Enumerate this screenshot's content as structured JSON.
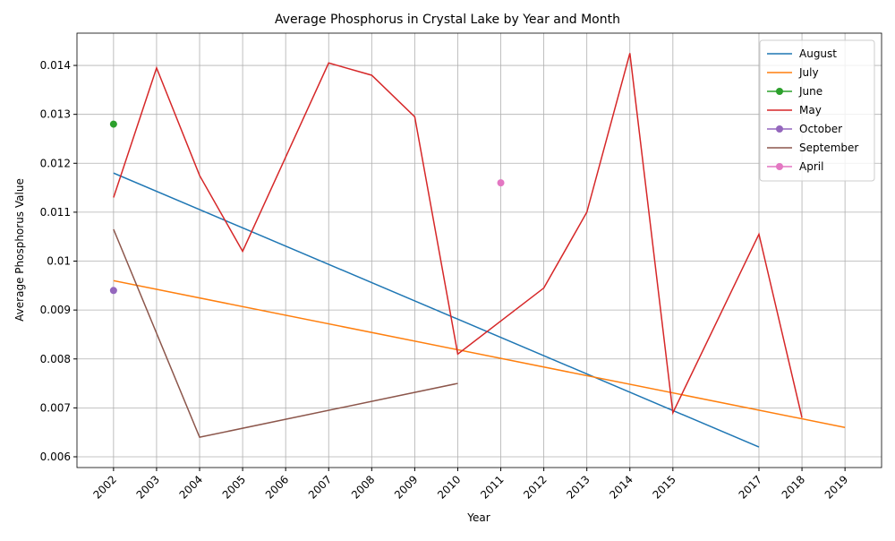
{
  "chart_data": {
    "type": "line",
    "title": "Average Phosphorus in Crystal Lake by Year and Month",
    "x_label": "Year",
    "y_label": "Average Phosphorus Value",
    "xlim": [
      2001.15,
      2019.85
    ],
    "ylim": [
      0.00578,
      0.01466
    ],
    "xticks": [
      2002,
      2003,
      2004,
      2005,
      2006,
      2007,
      2008,
      2009,
      2010,
      2011,
      2012,
      2013,
      2014,
      2015,
      2017,
      2018,
      2019
    ],
    "yticks": [
      0.006,
      0.007,
      0.008,
      0.009,
      0.01,
      0.011,
      0.012,
      0.013,
      0.014
    ],
    "grid": true,
    "legend": "upper right",
    "series": [
      {
        "name": "August",
        "color": "#1f77b4",
        "marker": false,
        "x": [
          2002,
          2017
        ],
        "values": [
          0.0118,
          0.0062
        ]
      },
      {
        "name": "July",
        "color": "#ff7f0e",
        "marker": false,
        "x": [
          2002,
          2019
        ],
        "values": [
          0.0096,
          0.0066
        ]
      },
      {
        "name": "June",
        "color": "#2ca02c",
        "marker": true,
        "x": [
          2002
        ],
        "values": [
          0.0128
        ]
      },
      {
        "name": "May",
        "color": "#d62728",
        "marker": false,
        "x": [
          2002,
          2003,
          2004,
          2005,
          2007,
          2008,
          2009,
          2010,
          2012,
          2013,
          2014,
          2015,
          2017,
          2018
        ],
        "values": [
          0.0113,
          0.01395,
          0.01175,
          0.0102,
          0.01405,
          0.0138,
          0.01295,
          0.0081,
          0.00945,
          0.011,
          0.01425,
          0.0069,
          0.01055,
          0.0068
        ]
      },
      {
        "name": "October",
        "color": "#9467bd",
        "marker": true,
        "x": [
          2002
        ],
        "values": [
          0.0094
        ]
      },
      {
        "name": "September",
        "color": "#8c564b",
        "marker": false,
        "x": [
          2002,
          2004,
          2010
        ],
        "values": [
          0.01065,
          0.0064,
          0.0075
        ]
      },
      {
        "name": "April",
        "color": "#e377c2",
        "marker": true,
        "x": [
          2011
        ],
        "values": [
          0.0116
        ]
      }
    ]
  }
}
